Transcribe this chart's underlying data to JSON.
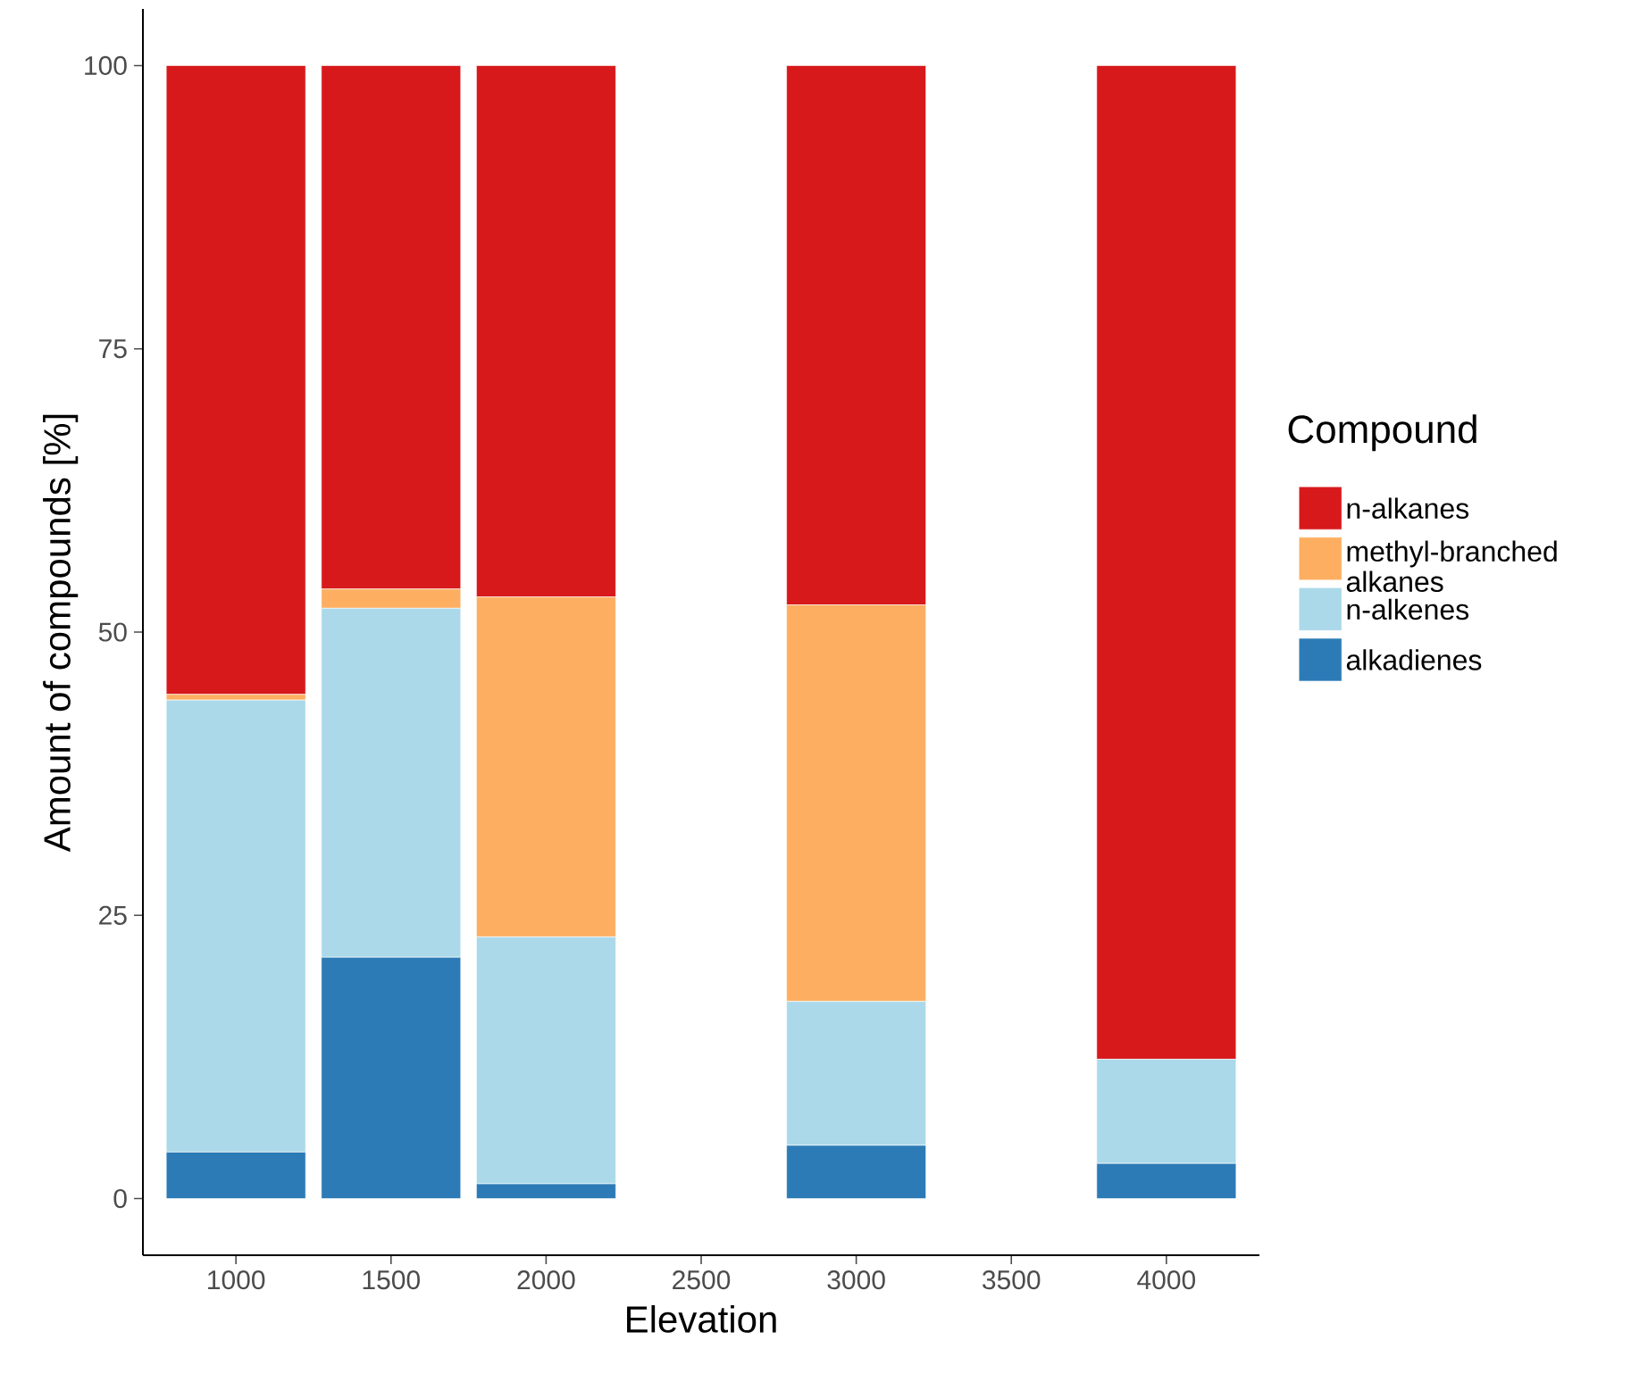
{
  "chart_data": {
    "type": "bar",
    "stacked": true,
    "xlabel": "Elevation",
    "ylabel": "Amount of compounds [%]",
    "legend_title": "Compound",
    "legend": "right",
    "categories": [
      "1000",
      "1500",
      "2000",
      "2500",
      "3000",
      "3500",
      "4000"
    ],
    "ylim": [
      -5,
      105
    ],
    "yticks": [
      0,
      25,
      50,
      75,
      100
    ],
    "series": [
      {
        "name": "alkadienes",
        "color": "#2c7bb6",
        "values": [
          4.1,
          21.3,
          1.3,
          0,
          4.7,
          0,
          3.1
        ]
      },
      {
        "name": "n-alkenes",
        "color": "#abd9e9",
        "values": [
          39.9,
          30.8,
          21.8,
          0,
          12.7,
          0,
          9.2
        ]
      },
      {
        "name": "methyl-branched alkanes",
        "color": "#fdae61",
        "values": [
          0.5,
          1.7,
          30.0,
          0,
          35.0,
          0,
          0
        ]
      },
      {
        "name": "n-alkanes",
        "color": "#d7191c",
        "values": [
          55.5,
          46.2,
          46.9,
          0,
          47.6,
          0,
          87.7
        ]
      }
    ]
  }
}
